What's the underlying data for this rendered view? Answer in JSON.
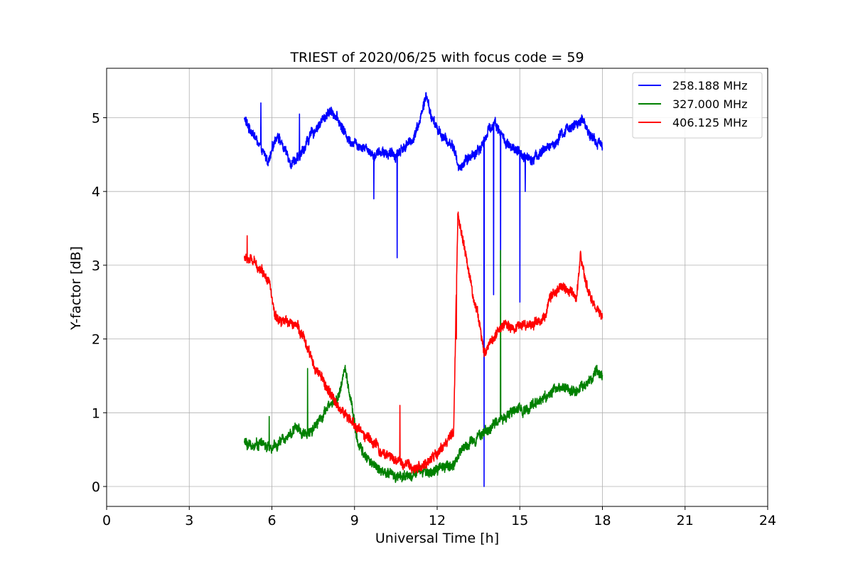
{
  "chart_data": {
    "type": "line",
    "title": "TRIEST of 2020/06/25 with focus code = 59",
    "xlabel": "Universal Time [h]",
    "ylabel": "Y-factor [dB]",
    "xlim": [
      0,
      24
    ],
    "ylim": [
      -0.27,
      5.67
    ],
    "xticks": [
      0,
      3,
      6,
      9,
      12,
      15,
      18,
      21,
      24
    ],
    "yticks": [
      0,
      1,
      2,
      3,
      4,
      5
    ],
    "xtick_labels": [
      "0",
      "3",
      "6",
      "9",
      "12",
      "15",
      "18",
      "21",
      "24"
    ],
    "ytick_labels": [
      "0",
      "1",
      "2",
      "3",
      "4",
      "5"
    ],
    "grid": true,
    "legend_position": "top-right",
    "series": [
      {
        "name": "258.188 MHz",
        "color": "#0000ff",
        "noise": 0.07,
        "x": [
          5.0,
          5.1,
          5.3,
          5.5,
          5.7,
          5.9,
          6.0,
          6.2,
          6.4,
          6.7,
          7.0,
          7.3,
          7.6,
          8.0,
          8.2,
          8.5,
          8.8,
          9.1,
          9.4,
          9.7,
          10.0,
          10.3,
          10.5,
          10.8,
          11.1,
          11.4,
          11.6,
          11.8,
          12.0,
          12.3,
          12.6,
          12.8,
          13.0,
          13.3,
          13.6,
          13.7,
          13.9,
          14.1,
          14.3,
          14.5,
          14.8,
          15.1,
          15.4,
          15.7,
          16.0,
          16.3,
          16.6,
          16.9,
          17.1,
          17.3,
          17.6,
          17.8,
          18.0
        ],
        "y": [
          5.0,
          4.9,
          4.8,
          4.65,
          4.5,
          4.4,
          4.55,
          4.8,
          4.6,
          4.4,
          4.45,
          4.7,
          4.85,
          5.05,
          5.1,
          4.9,
          4.7,
          4.65,
          4.6,
          4.5,
          4.55,
          4.5,
          4.5,
          4.6,
          4.7,
          5.0,
          5.3,
          5.0,
          4.85,
          4.7,
          4.6,
          4.3,
          4.4,
          4.5,
          4.6,
          4.7,
          4.85,
          4.95,
          4.8,
          4.65,
          4.55,
          4.5,
          4.45,
          4.5,
          4.6,
          4.65,
          4.8,
          4.9,
          4.9,
          4.95,
          4.75,
          4.65,
          4.65
        ],
        "spikes": [
          [
            5.6,
            5.2
          ],
          [
            7.0,
            5.05
          ],
          [
            9.7,
            3.9
          ],
          [
            10.55,
            3.1
          ],
          [
            13.7,
            0.0
          ],
          [
            14.05,
            2.6
          ],
          [
            14.3,
            2.9
          ],
          [
            15.0,
            2.5
          ],
          [
            15.2,
            4.0
          ]
        ]
      },
      {
        "name": "327.000 MHz",
        "color": "#008000",
        "noise": 0.07,
        "x": [
          5.0,
          5.3,
          5.6,
          6.0,
          6.3,
          6.6,
          6.9,
          7.2,
          7.5,
          7.8,
          8.1,
          8.4,
          8.65,
          8.9,
          9.1,
          9.4,
          9.7,
          10.0,
          10.3,
          10.6,
          11.0,
          11.4,
          11.8,
          12.2,
          12.6,
          12.9,
          13.2,
          13.5,
          13.8,
          14.1,
          14.4,
          14.7,
          15.0,
          15.3,
          15.6,
          15.9,
          16.2,
          16.6,
          17.0,
          17.3,
          17.6,
          17.8,
          18.0
        ],
        "y": [
          0.6,
          0.55,
          0.6,
          0.5,
          0.6,
          0.7,
          0.8,
          0.7,
          0.8,
          0.95,
          1.1,
          1.2,
          1.6,
          1.1,
          0.6,
          0.4,
          0.3,
          0.2,
          0.15,
          0.15,
          0.15,
          0.2,
          0.2,
          0.25,
          0.3,
          0.5,
          0.6,
          0.7,
          0.75,
          0.85,
          0.95,
          1.0,
          1.05,
          1.05,
          1.15,
          1.2,
          1.3,
          1.35,
          1.3,
          1.35,
          1.45,
          1.55,
          1.5
        ],
        "spikes": [
          [
            5.9,
            0.95
          ],
          [
            7.3,
            1.6
          ],
          [
            14.3,
            3.2
          ]
        ]
      },
      {
        "name": "406.125 MHz",
        "color": "#ff0000",
        "noise": 0.07,
        "x": [
          5.0,
          5.3,
          5.6,
          5.9,
          6.1,
          6.3,
          6.6,
          6.9,
          7.1,
          7.3,
          7.6,
          7.9,
          8.2,
          8.5,
          8.8,
          9.1,
          9.4,
          9.7,
          10.0,
          10.4,
          10.8,
          11.2,
          11.6,
          12.0,
          12.3,
          12.6,
          12.75,
          12.9,
          13.1,
          13.3,
          13.5,
          13.7,
          13.9,
          14.2,
          14.5,
          14.8,
          15.1,
          15.4,
          15.7,
          15.95,
          16.1,
          16.3,
          16.6,
          16.9,
          17.05,
          17.2,
          17.4,
          17.7,
          18.0
        ],
        "y": [
          3.1,
          3.05,
          2.95,
          2.8,
          2.3,
          2.2,
          2.25,
          2.2,
          2.05,
          1.85,
          1.6,
          1.4,
          1.2,
          1.05,
          0.9,
          0.8,
          0.7,
          0.6,
          0.45,
          0.4,
          0.3,
          0.25,
          0.3,
          0.45,
          0.6,
          0.7,
          3.7,
          3.4,
          3.0,
          2.6,
          2.3,
          1.8,
          1.95,
          2.1,
          2.2,
          2.15,
          2.2,
          2.2,
          2.25,
          2.3,
          2.6,
          2.65,
          2.7,
          2.6,
          2.5,
          3.1,
          2.75,
          2.45,
          2.3
        ],
        "spikes": [
          [
            5.1,
            3.4
          ],
          [
            10.65,
            1.1
          ],
          [
            12.7,
            2.0
          ]
        ]
      }
    ]
  }
}
